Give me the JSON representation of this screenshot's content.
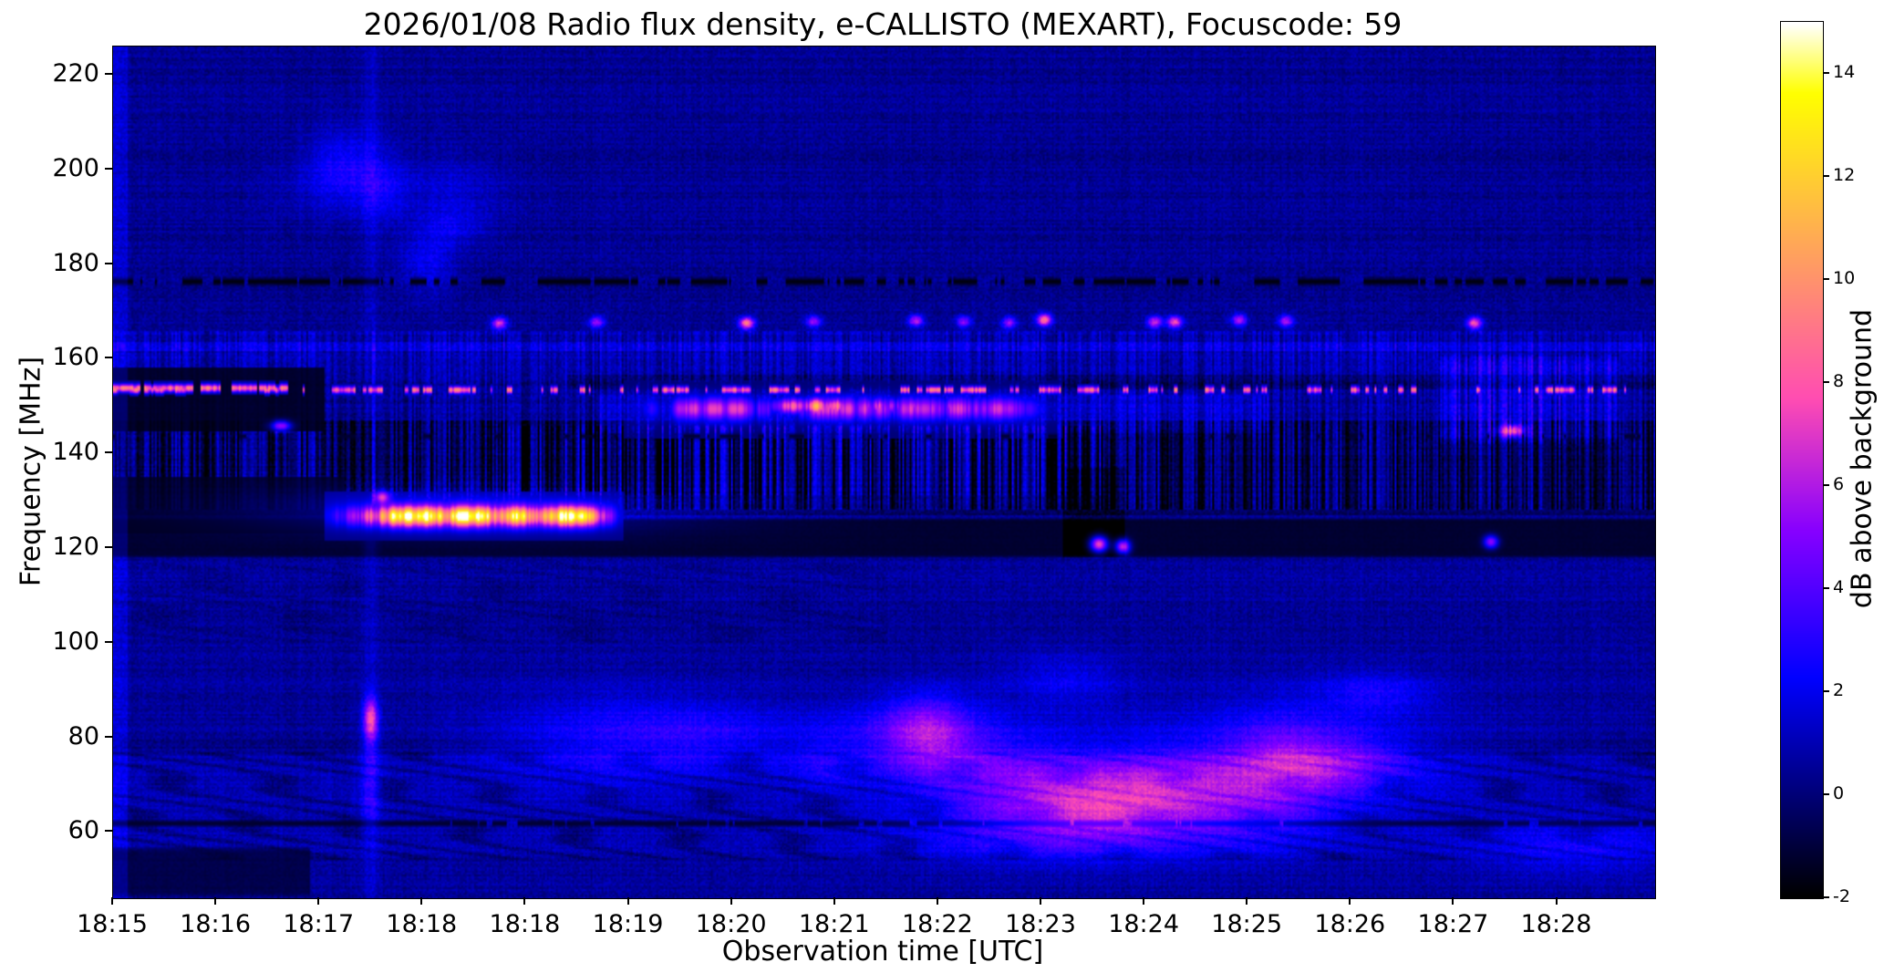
{
  "figure": {
    "background": "#ffffff"
  },
  "chart_data": {
    "type": "heatmap",
    "title": "2026/01/08  Radio flux density, e-CALLISTO (MEXART), Focuscode: 59",
    "xlabel": "Observation time [UTC]",
    "ylabel": "Frequency [MHz]",
    "colorbar_label": "dB above background",
    "x_tick_labels": [
      "18:15",
      "18:16",
      "18:17",
      "18:18",
      "18:18",
      "18:19",
      "18:20",
      "18:21",
      "18:22",
      "18:23",
      "18:24",
      "18:25",
      "18:26",
      "18:27",
      "18:28"
    ],
    "y_tick_values": [
      220,
      200,
      180,
      160,
      140,
      120,
      100,
      80,
      60
    ],
    "colorbar_ticks": [
      14,
      12,
      10,
      8,
      6,
      4,
      2,
      0,
      -2
    ],
    "freq_range_mhz": [
      46,
      226
    ],
    "time_range_ticks": [
      0,
      14.95
    ],
    "value_range_db": [
      -2,
      15
    ],
    "colormap": "gnuplot2",
    "grid": false,
    "events": [
      {
        "label": "strong narrow-band burst, yellow-white core",
        "freq_mhz": [
          124,
          130
        ],
        "time_utc": [
          "18:17",
          "18:19"
        ],
        "peak_db": 15
      },
      {
        "label": "moderate drifting emission band",
        "freq_mhz": [
          145,
          153
        ],
        "time_utc": [
          "18:20",
          "18:23"
        ],
        "peak_db": 11
      },
      {
        "label": "intermittent pink RFI line",
        "freq_mhz": [
          153,
          154
        ],
        "time_utc": [
          "18:15",
          "18:29"
        ],
        "peak_db": 8
      },
      {
        "label": "dark blanked RFI line",
        "freq_mhz": [
          176,
          177
        ],
        "time_utc": [
          "18:15",
          "18:29"
        ],
        "peak_db": -2
      },
      {
        "label": "sporadic RFI dots",
        "freq_mhz": [
          167,
          169
        ],
        "time_utc": [
          "18:17",
          "18:29"
        ],
        "peak_db": 7
      },
      {
        "label": "vertical streak with pink spot",
        "freq_mhz": [
          75,
          95
        ],
        "time_utc": [
          "18:17:30",
          "18:17:30"
        ],
        "peak_db": 7
      },
      {
        "label": "wavy interference pattern",
        "freq_mhz": [
          54,
          77
        ],
        "time_utc": [
          "18:15",
          "18:29"
        ],
        "peak_db": 1
      },
      {
        "label": "dark absorbed band",
        "freq_mhz": [
          118,
          127
        ],
        "time_utc": [
          "18:19",
          "18:29"
        ],
        "peak_db": -2
      }
    ],
    "render": {
      "seed": 11,
      "base": 0.55,
      "row_noise": 0.28,
      "col_noise": 0.18,
      "pixel_noise": 0.5,
      "features": [
        {
          "type": "band",
          "f": [
            196,
            226
          ],
          "add": -0.1
        },
        {
          "type": "band",
          "f": [
            168,
            196
          ],
          "add": -0.15
        },
        {
          "type": "clouds",
          "t": [
            1.9,
            3.8
          ],
          "f": [
            178,
            203
          ],
          "n": 6,
          "v": 1.2,
          "rt": 0.3,
          "rf": 4
        },
        {
          "type": "hdash",
          "f": 176.5,
          "v": -1.8,
          "th": 1.5,
          "pon": 0.2,
          "poff": 0.12
        },
        {
          "type": "band",
          "f": [
            156,
            166
          ],
          "add": 0.45
        },
        {
          "type": "stripes",
          "f": [
            147,
            166
          ],
          "amp": 0.9
        },
        {
          "type": "band",
          "f": [
            161.5,
            163.5
          ],
          "add": 0.7
        },
        {
          "type": "band",
          "f": [
            127,
            147
          ],
          "add": -1.0
        },
        {
          "type": "stripes",
          "f": [
            128,
            147
          ],
          "amp": 1.9
        },
        {
          "type": "stripes",
          "t": [
            3.8,
            9.6
          ],
          "f": [
            131,
            146
          ],
          "amp": 1.1
        },
        {
          "type": "band",
          "f": [
            117.5,
            126.5
          ],
          "set": -1.5,
          "w": 0.85,
          "soft": 2
        },
        {
          "type": "band",
          "t": [
            0,
            2.25
          ],
          "f": [
            123,
            135
          ],
          "set": -1.5,
          "w": 0.8
        },
        {
          "type": "band",
          "t": [
            0,
            2.05
          ],
          "f": [
            144.5,
            158
          ],
          "set": -1.6,
          "w": 0.85
        },
        {
          "type": "band",
          "t": [
            4.4,
            14.95
          ],
          "f": [
            153.5,
            156.5
          ],
          "add": -0.8
        },
        {
          "type": "band",
          "t": [
            9.2,
            9.8
          ],
          "f": [
            118,
            137
          ],
          "add": -0.9
        },
        {
          "type": "waves",
          "t": [
            0,
            7.5
          ],
          "f": [
            100,
            117
          ],
          "amp": 0.4,
          "kt": 5.5,
          "kf": 0.8
        },
        {
          "type": "band",
          "f": [
            55,
            76
          ],
          "add": 0.45
        },
        {
          "type": "waves",
          "f": [
            54,
            77
          ],
          "amp": 1.0,
          "kt": 7.0,
          "kf": 0.75
        },
        {
          "type": "hdash",
          "f": 62,
          "v": -1.3,
          "th": 1.2,
          "pon": 0.5,
          "poff": 0.03
        },
        {
          "type": "band",
          "t": [
            0,
            1.9
          ],
          "f": [
            46,
            57
          ],
          "set": -1.3,
          "w": 0.7,
          "soft": 3
        },
        {
          "type": "band",
          "f": [
            77.5,
            79.5
          ],
          "add": -0.45
        },
        {
          "type": "clouds",
          "t": [
            4.6,
            14.6
          ],
          "f": [
            50,
            92
          ],
          "n": 16,
          "v": 1.5,
          "rt": 0.55,
          "rf": 5
        },
        {
          "type": "clouds",
          "t": [
            8.8,
            11.8
          ],
          "f": [
            55,
            95
          ],
          "n": 6,
          "v": 1.4,
          "rt": 0.8,
          "rf": 7
        },
        {
          "type": "vline",
          "t": 2.49,
          "v": 0.8,
          "w": 0.05
        },
        {
          "type": "spot",
          "t": 2.49,
          "f": 84,
          "v": 6.5,
          "rt": 0.05,
          "rf": 3.2
        },
        {
          "type": "spot",
          "t": 2.49,
          "f": 70,
          "v": 2.0,
          "rt": 0.07,
          "rf": 7
        },
        {
          "type": "band",
          "t": [
            0,
            0.14
          ],
          "f": [
            46,
            226
          ],
          "add": 1.1
        },
        {
          "type": "burst",
          "t": [
            2.05,
            4.95
          ],
          "fc": 126.9,
          "sf": 1.5,
          "v": 14
        },
        {
          "type": "spot",
          "t": 3.5,
          "f": 128,
          "v": 2.0,
          "rt": 1.5,
          "rf": 3.5
        },
        {
          "type": "band",
          "t": [
            4.7,
            11.2
          ],
          "f": [
            144,
            153
          ],
          "add": 0.9,
          "soft": 3
        },
        {
          "type": "burst",
          "t": [
            4.95,
            9.2
          ],
          "fc": 149.6,
          "sf": 1.8,
          "v": 7
        },
        {
          "type": "burst",
          "t": [
            6.25,
            8.65
          ],
          "fc": 150.2,
          "sf": 1.2,
          "v": 11
        },
        {
          "type": "band",
          "t": [
            12.85,
            14.6
          ],
          "f": [
            142,
            161
          ],
          "add": 1.2,
          "soft": 4
        },
        {
          "type": "stripes",
          "t": [
            12.85,
            14.6
          ],
          "f": [
            142,
            161
          ],
          "amp": 0.8
        },
        {
          "type": "hdash",
          "f": 153.6,
          "v": 8.2,
          "th": 1.4,
          "pon": 0.12,
          "poff": 0.25
        },
        {
          "type": "hdash",
          "t": [
            0,
            1.7
          ],
          "f": 154,
          "v": 8.5,
          "th": 1.5,
          "pon": 0.4,
          "poff": 0.12
        },
        {
          "type": "dots",
          "f": 168,
          "t": [
            2.3,
            14.6
          ],
          "n": 13,
          "v": 6.8,
          "rt": 0.05,
          "rf": 0.9
        },
        {
          "type": "spot",
          "t": 9.55,
          "f": 121,
          "v": 9.5,
          "rt": 0.06,
          "rf": 1.2
        },
        {
          "type": "spot",
          "t": 9.78,
          "f": 120.5,
          "v": 8.5,
          "rt": 0.05,
          "rf": 1.1
        },
        {
          "type": "spot",
          "t": 13.35,
          "f": 121.5,
          "v": 6.5,
          "rt": 0.05,
          "rf": 1.0
        },
        {
          "type": "spot",
          "t": 13.55,
          "f": 145,
          "v": 7.5,
          "rt": 0.08,
          "rf": 0.9
        },
        {
          "type": "spot",
          "t": 1.62,
          "f": 146,
          "v": 7.0,
          "rt": 0.07,
          "rf": 0.8
        },
        {
          "type": "spot",
          "t": 2.6,
          "f": 131,
          "v": 6.0,
          "rt": 0.05,
          "rf": 0.9
        },
        {
          "type": "hdash",
          "f": 143.8,
          "v": -1.2,
          "th": 1.0,
          "pon": 0.06,
          "poff": 0.3
        }
      ]
    }
  }
}
